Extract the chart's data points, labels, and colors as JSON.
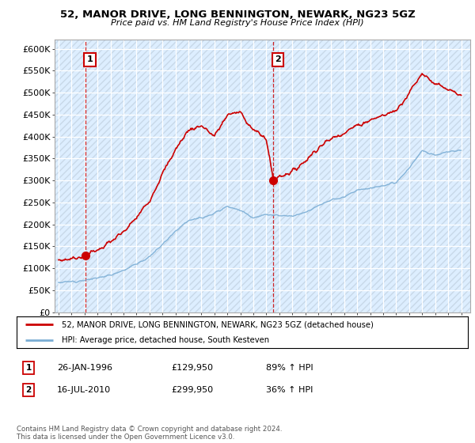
{
  "title": "52, MANOR DRIVE, LONG BENNINGTON, NEWARK, NG23 5GZ",
  "subtitle": "Price paid vs. HM Land Registry's House Price Index (HPI)",
  "ylim": [
    0,
    620000
  ],
  "yticks": [
    0,
    50000,
    100000,
    150000,
    200000,
    250000,
    300000,
    350000,
    400000,
    450000,
    500000,
    550000,
    600000
  ],
  "xlim_start": 1993.7,
  "xlim_end": 2025.7,
  "sales": [
    {
      "date": 1996.07,
      "price": 129950,
      "label": "1"
    },
    {
      "date": 2010.54,
      "price": 299950,
      "label": "2"
    }
  ],
  "sale_color": "#cc0000",
  "hpi_color": "#7aadd4",
  "grid_color": "#cccccc",
  "chart_bg_color": "#ddeeff",
  "background_color": "#ffffff",
  "hatch_color": "#c8d8e8",
  "legend_line1": "52, MANOR DRIVE, LONG BENNINGTON, NEWARK, NG23 5GZ (detached house)",
  "legend_line2": "HPI: Average price, detached house, South Kesteven",
  "table_rows": [
    {
      "num": "1",
      "date": "26-JAN-1996",
      "price": "£129,950",
      "hpi": "89% ↑ HPI"
    },
    {
      "num": "2",
      "date": "16-JUL-2010",
      "price": "£299,950",
      "hpi": "36% ↑ HPI"
    }
  ],
  "footnote": "Contains HM Land Registry data © Crown copyright and database right 2024.\nThis data is licensed under the Open Government Licence v3.0.",
  "vline_color": "#cc0000",
  "hpi_anchors_years": [
    1994,
    1995,
    1996,
    1997,
    1998,
    1999,
    2000,
    2001,
    2002,
    2003,
    2004,
    2005,
    2006,
    2007,
    2008,
    2009,
    2010,
    2011,
    2012,
    2013,
    2014,
    2015,
    2016,
    2017,
    2018,
    2019,
    2020,
    2021,
    2022,
    2023,
    2024,
    2025
  ],
  "hpi_anchors_vals": [
    68000,
    70000,
    73000,
    78000,
    85000,
    96000,
    110000,
    126000,
    155000,
    185000,
    210000,
    215000,
    225000,
    242000,
    232000,
    215000,
    222000,
    220000,
    218000,
    228000,
    243000,
    255000,
    263000,
    278000,
    283000,
    288000,
    295000,
    328000,
    368000,
    358000,
    365000,
    370000
  ],
  "prop_anchors_years": [
    1994,
    1995,
    1996.07,
    1997,
    1998,
    1999,
    2000,
    2001,
    2002,
    2003,
    2004,
    2005,
    2006,
    2007,
    2008,
    2009,
    2010.0,
    2010.54,
    2011,
    2012,
    2013,
    2014,
    2015,
    2016,
    2017,
    2018,
    2019,
    2020,
    2021,
    2022,
    2023,
    2024,
    2025
  ],
  "prop_anchors_vals": [
    118000,
    122000,
    129950,
    142000,
    160000,
    182000,
    215000,
    255000,
    315000,
    370000,
    415000,
    425000,
    400000,
    450000,
    455000,
    415000,
    395000,
    299950,
    310000,
    320000,
    345000,
    375000,
    395000,
    410000,
    425000,
    438000,
    448000,
    460000,
    500000,
    545000,
    520000,
    505000,
    492000
  ]
}
